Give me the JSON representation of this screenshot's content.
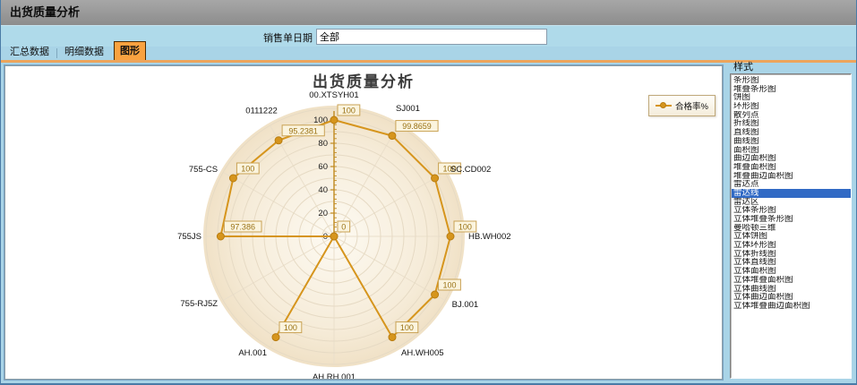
{
  "window": {
    "title": "出货质量分析"
  },
  "filter": {
    "label": "销售单日期",
    "value": "全部"
  },
  "tabs": {
    "items": [
      {
        "label": "汇总数据"
      },
      {
        "label": "明细数据"
      },
      {
        "label": "图形"
      }
    ],
    "active_index": 2
  },
  "style_panel": {
    "title": "样式",
    "selected": "雷达线",
    "selected_index": 13,
    "items": [
      "条形图",
      "堆叠条形图",
      "饼图",
      "环形图",
      "散列点",
      "折线图",
      "直线图",
      "曲线图",
      "面积图",
      "曲边面积图",
      "堆叠面积图",
      "堆叠曲边面积图",
      "雷达点",
      "雷达线",
      "雷达区",
      "立体条形图",
      "立体堆叠条形图",
      "曼哈顿三维",
      "立体饼图",
      "立体环形图",
      "立体折线图",
      "立体直线图",
      "立体面积图",
      "立体堆叠面积图",
      "立体曲线图",
      "立体曲边面积图",
      "立体堆叠曲边面积图"
    ]
  },
  "chart_data": {
    "type": "radar-line",
    "title": "出货质量分析",
    "series_name": "合格率%",
    "legend_position": "top-right",
    "categories": [
      "00.XTSYH01",
      "SJ001",
      "SC.CD002",
      "HB.WH002",
      "BJ.001",
      "AH.WH005",
      "AH.RH.001",
      "AH.001",
      "755-RJ5Z",
      "755JS",
      "755-CS",
      "0111222"
    ],
    "values": [
      100,
      99.8659,
      100,
      100,
      100,
      100,
      0,
      100,
      0,
      97.386,
      100,
      95.2381
    ],
    "value_labels": [
      "100",
      "99.8659",
      "100",
      "100",
      "100",
      "100",
      "0",
      "100",
      "0",
      "97.386",
      "100",
      "95.2381"
    ],
    "axis_ticks": [
      0,
      20,
      40,
      60,
      80,
      100
    ],
    "range": [
      0,
      100
    ],
    "grid": "circular",
    "colors": {
      "line": "#D6951D",
      "marker": "#D6951D",
      "marker_edge": "#B87C10",
      "axis": "#C08A20",
      "grid_line": "#E6DAC4",
      "spoke": "#EADFCB",
      "disc_center": "#FDFAF2",
      "disc_mid": "#F6ECD9",
      "disc_edge": "#F0E1C6",
      "label_box_bg": "#FBF4DE",
      "label_box_border": "#C9A254",
      "label_text": "#9A7214",
      "category_text": "#111111",
      "tick_text": "#222222"
    }
  }
}
